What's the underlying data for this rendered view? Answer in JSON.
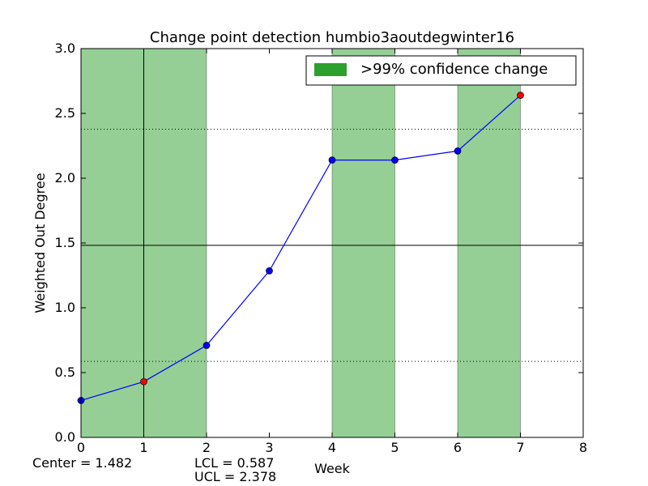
{
  "chart_data": {
    "type": "line",
    "title": "Change point detection humbio3aoutdegwinter16",
    "xlabel": "Week",
    "ylabel": "Weighted Out Degree",
    "xlim": [
      0,
      8
    ],
    "ylim": [
      0,
      3.0
    ],
    "x_ticks": [
      "0",
      "1",
      "2",
      "3",
      "4",
      "5",
      "6",
      "7",
      "8"
    ],
    "y_ticks": [
      "0.0",
      "0.5",
      "1.0",
      "1.5",
      "2.0",
      "2.5",
      "3.0"
    ],
    "grid": false,
    "legend": {
      "placement": "top-right",
      "entries": [
        ">99% confidence change"
      ]
    },
    "series": [
      {
        "x": [
          0,
          1,
          2,
          3,
          4,
          5,
          6,
          7
        ],
        "values": [
          0.285,
          0.43,
          0.71,
          1.285,
          2.14,
          2.14,
          2.21,
          2.64
        ],
        "color": "#0000ff",
        "change_points_x": [
          1,
          7
        ],
        "change_point_color": "#ff0000"
      }
    ],
    "confidence_bands": [
      [
        0,
        2
      ],
      [
        4,
        5
      ],
      [
        6,
        7
      ]
    ],
    "band_color": "#2ca02c",
    "vertical_lines_x": [
      1
    ],
    "center_line": {
      "y": 1.482,
      "label": "Center = 1.482"
    },
    "control_limits": [
      {
        "y": 0.587,
        "label": "LCL = 0.587"
      },
      {
        "y": 2.378,
        "label": "UCL = 2.378"
      }
    ]
  }
}
